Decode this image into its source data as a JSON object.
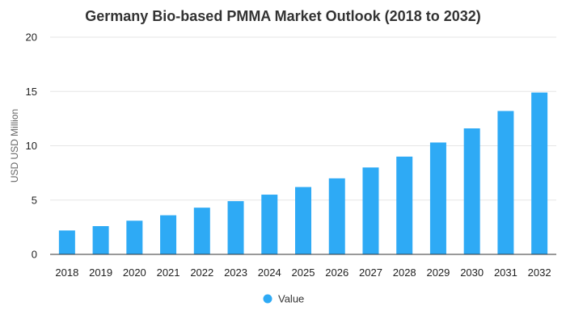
{
  "chart_data": {
    "type": "bar",
    "title": "Germany Bio-based PMMA Market Outlook (2018 to 2032)",
    "xlabel": "",
    "ylabel": "USD USD Million",
    "categories": [
      "2018",
      "2019",
      "2020",
      "2021",
      "2022",
      "2023",
      "2024",
      "2025",
      "2026",
      "2027",
      "2028",
      "2029",
      "2030",
      "2031",
      "2032"
    ],
    "series": [
      {
        "name": "Value",
        "color": "#2eaaf5",
        "values": [
          2.2,
          2.6,
          3.1,
          3.6,
          4.3,
          4.9,
          5.5,
          6.2,
          7.0,
          8.0,
          9.0,
          10.3,
          11.6,
          13.2,
          14.9
        ]
      }
    ],
    "ylim": [
      0,
      20
    ],
    "yticks": [
      0,
      5,
      10,
      15,
      20
    ],
    "grid": true,
    "legend_position": "bottom-center"
  }
}
